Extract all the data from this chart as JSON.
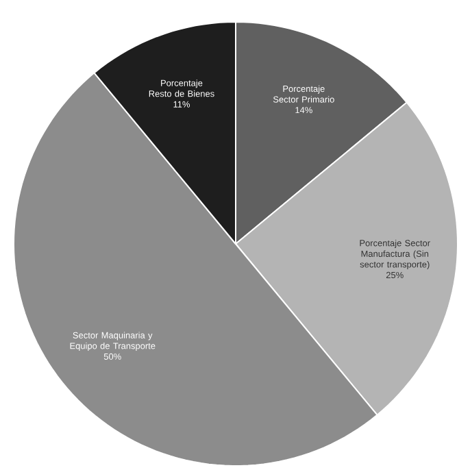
{
  "chart_data": {
    "type": "pie",
    "categories": [
      "Porcentaje Sector Primario",
      "Porcentaje Sector Manufactura (Sin sector transporte)",
      "Sector Maquinaria y Equipo de Transporte",
      "Porcentaje Resto de Bienes"
    ],
    "values": [
      14,
      25,
      50,
      11
    ],
    "value_labels": [
      "14%",
      "25%",
      "50%",
      "11%"
    ],
    "colors": [
      "#606060",
      "#b4b4b4",
      "#8c8c8c",
      "#1e1e1e"
    ]
  }
}
